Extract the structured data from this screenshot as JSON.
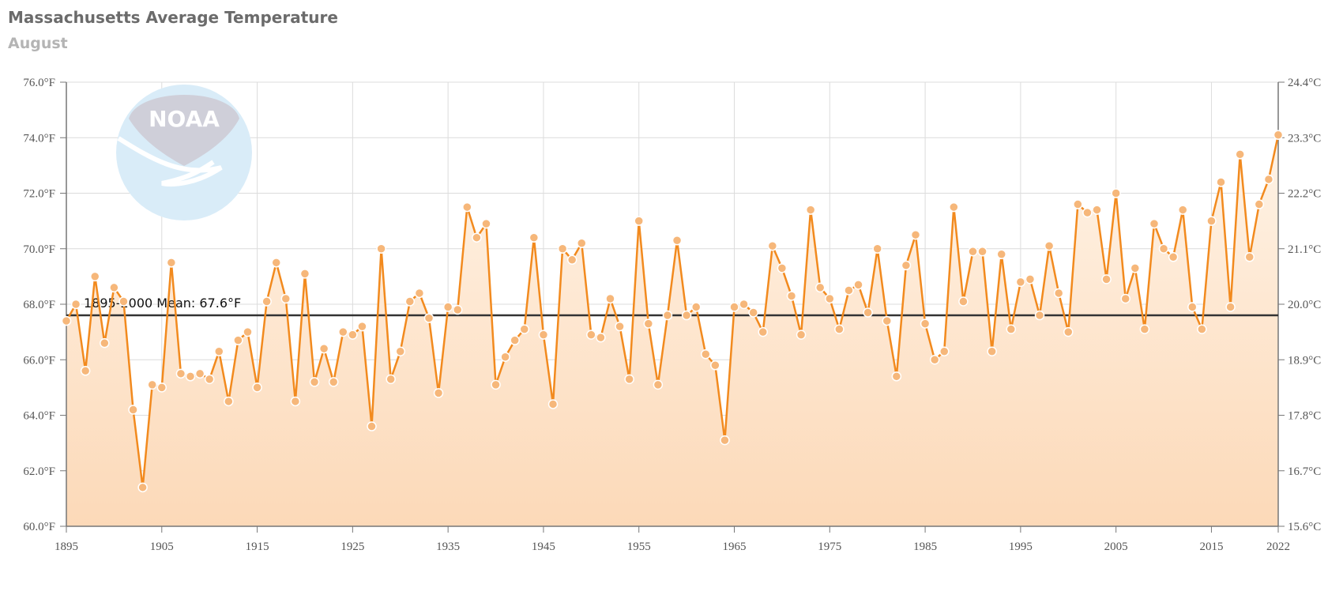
{
  "chart_data": {
    "type": "line",
    "title": "Massachusetts Average Temperature",
    "subtitle": "August",
    "logo_text": "NOAA",
    "x": [
      1895,
      1896,
      1897,
      1898,
      1899,
      1900,
      1901,
      1902,
      1903,
      1904,
      1905,
      1906,
      1907,
      1908,
      1909,
      1910,
      1911,
      1912,
      1913,
      1914,
      1915,
      1916,
      1917,
      1918,
      1919,
      1920,
      1921,
      1922,
      1923,
      1924,
      1925,
      1926,
      1927,
      1928,
      1929,
      1930,
      1931,
      1932,
      1933,
      1934,
      1935,
      1936,
      1937,
      1938,
      1939,
      1940,
      1941,
      1942,
      1943,
      1944,
      1945,
      1946,
      1947,
      1948,
      1949,
      1950,
      1951,
      1952,
      1953,
      1954,
      1955,
      1956,
      1957,
      1958,
      1959,
      1960,
      1961,
      1962,
      1963,
      1964,
      1965,
      1966,
      1967,
      1968,
      1969,
      1970,
      1971,
      1972,
      1973,
      1974,
      1975,
      1976,
      1977,
      1978,
      1979,
      1980,
      1981,
      1982,
      1983,
      1984,
      1985,
      1986,
      1987,
      1988,
      1989,
      1990,
      1991,
      1992,
      1993,
      1994,
      1995,
      1996,
      1997,
      1998,
      1999,
      2000,
      2001,
      2002,
      2003,
      2004,
      2005,
      2006,
      2007,
      2008,
      2009,
      2010,
      2011,
      2012,
      2013,
      2014,
      2015,
      2016,
      2017,
      2018,
      2019,
      2020,
      2021,
      2022
    ],
    "series": [
      {
        "name": "",
        "values": [
          67.4,
          68.0,
          65.6,
          69.0,
          66.6,
          68.6,
          68.1,
          64.2,
          61.4,
          65.1,
          65.0,
          69.5,
          65.5,
          65.4,
          65.5,
          65.3,
          66.3,
          64.5,
          66.7,
          67.0,
          65.0,
          68.1,
          69.5,
          68.2,
          64.5,
          69.1,
          65.2,
          66.4,
          65.2,
          67.0,
          66.9,
          67.2,
          63.6,
          70.0,
          65.3,
          66.3,
          68.1,
          68.4,
          67.5,
          64.8,
          67.9,
          67.8,
          71.5,
          70.4,
          70.9,
          65.1,
          66.1,
          66.7,
          67.1,
          70.4,
          66.9,
          64.4,
          70.0,
          69.6,
          70.2,
          66.9,
          66.8,
          68.2,
          67.2,
          65.3,
          71.0,
          67.3,
          65.1,
          67.6,
          70.3,
          67.6,
          67.9,
          66.2,
          65.8,
          63.1,
          67.9,
          68.0,
          67.7,
          67.0,
          70.1,
          69.3,
          68.3,
          66.9,
          71.4,
          68.6,
          68.2,
          67.1,
          68.5,
          68.7,
          67.7,
          70.0,
          67.4,
          65.4,
          69.4,
          70.5,
          67.3,
          66.0,
          66.3,
          71.5,
          68.1,
          69.9,
          69.9,
          66.3,
          69.8,
          67.1,
          68.8,
          68.9,
          67.6,
          70.1,
          68.4,
          67.0,
          71.6,
          71.3,
          71.4,
          68.9,
          72.0,
          68.2,
          69.3,
          67.1,
          70.9,
          70.0,
          69.7,
          71.4,
          67.9,
          67.1,
          71.0,
          72.4,
          67.9,
          73.4,
          69.7,
          71.6,
          72.5,
          74.1
        ]
      }
    ],
    "mean": {
      "value": 67.6,
      "label": "1895-2000 Mean: 67.6°F"
    },
    "ylim": [
      60,
      76
    ],
    "y_ticks": [
      60,
      62,
      64,
      66,
      68,
      70,
      72,
      74,
      76
    ],
    "y_tick_labels": [
      "60.0°F",
      "62.0°F",
      "64.0°F",
      "66.0°F",
      "68.0°F",
      "70.0°F",
      "72.0°F",
      "74.0°F",
      "76.0°F"
    ],
    "y2_tick_labels": [
      "15.6°C",
      "16.7°C",
      "17.8°C",
      "18.9°C",
      "20.0°C",
      "21.1°C",
      "22.2°C",
      "23.3°C",
      "24.4°C"
    ],
    "x_ticks": [
      1895,
      1905,
      1915,
      1925,
      1935,
      1945,
      1955,
      1965,
      1975,
      1985,
      1995,
      2005,
      2015,
      2022
    ],
    "x_tick_labels": [
      "1895",
      "1905",
      "1915",
      "1925",
      "1935",
      "1945",
      "1955",
      "1965",
      "1975",
      "1985",
      "1995",
      "2005",
      "2015",
      "2022"
    ],
    "xlim": [
      1895,
      2022
    ],
    "grid": true,
    "colors": {
      "line": "#f28a1e",
      "marker": "#f6b77a",
      "area_top": "#fff3e6",
      "area_bottom": "#fcd9b8",
      "mean_line": "#333333",
      "logo_blue": "#d9ecf8",
      "logo_grey": "#cfcfd9"
    }
  }
}
